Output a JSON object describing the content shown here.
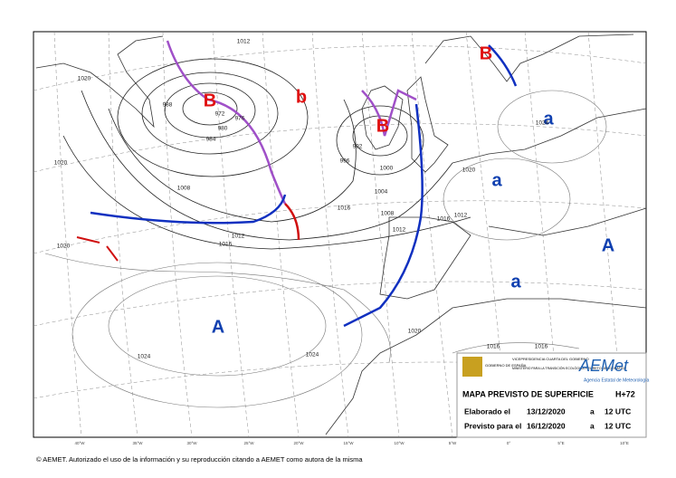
{
  "map": {
    "systems": [
      "B",
      "b",
      "B",
      "B",
      "a",
      "a",
      "A",
      "a",
      "A"
    ],
    "isobar_labels": [
      "1012",
      "1020",
      "988",
      "980",
      "976",
      "972",
      "984",
      "992",
      "996",
      "1000",
      "1004",
      "1008",
      "1012",
      "1016",
      "1012",
      "1020",
      "1012",
      "1016",
      "1024",
      "1020",
      "1016",
      "1016",
      "1024",
      "1020",
      "1024",
      "1020",
      "1008",
      "1016"
    ],
    "longitude_labels": [
      "40°W",
      "35°W",
      "30°W",
      "25°W",
      "20°W",
      "15°W",
      "10°W",
      "5°W",
      "0°",
      "5°E",
      "10°E"
    ]
  },
  "info_box": {
    "government": "GOBIERNO DE ESPAÑA",
    "vicepresidency": "VICEPRESIDENCIA CUARTA DEL GOBIERNO",
    "ministry": "MINISTERIO PARA LA TRANSICIÓN ECOLÓGICA Y EL RETO DEMOGRÁFICO",
    "agency_logo": "AEMet",
    "agency": "Agencia Estatal de Meteorología",
    "title": "MAPA PREVISTO DE SUPERFICIE",
    "horizon": "H+72",
    "rows": [
      [
        "Elaborado el",
        "13/12/2020",
        "a",
        "12 UTC"
      ],
      [
        "Previsto para el",
        "16/12/2020",
        "a",
        "12 UTC"
      ]
    ]
  },
  "footer": "© AEMET. Autorizado el uso de la información y su reproducción citando a AEMET como autora de la misma"
}
